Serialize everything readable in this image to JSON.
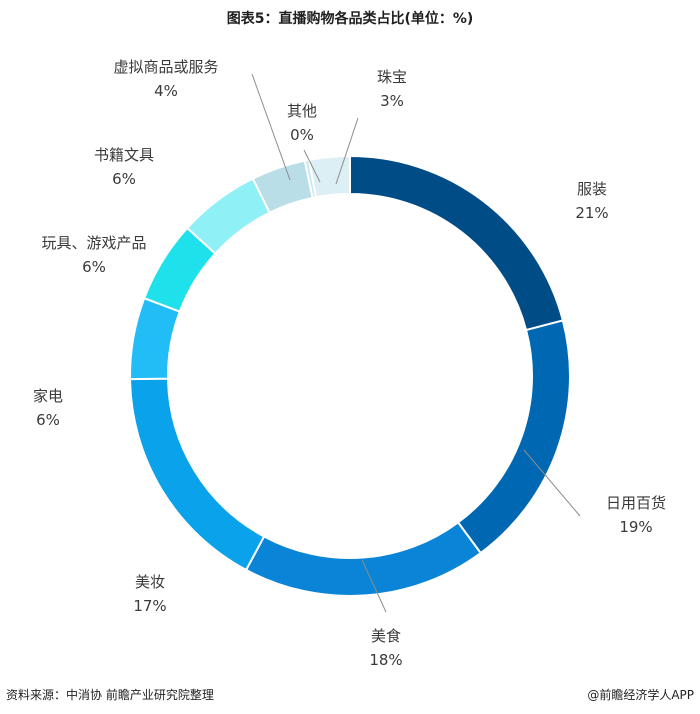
{
  "title": "图表5：直播购物各品类占比(单位：%)",
  "footer": {
    "source": "资料来源：中消协 前瞻产业研究院整理",
    "brand": "@前瞻经济学人APP"
  },
  "chart_data": {
    "type": "donut",
    "series": [
      {
        "name": "服装",
        "value": 21,
        "value_label": "21%",
        "color": "#004C87"
      },
      {
        "name": "日用百货",
        "value": 19,
        "value_label": "19%",
        "color": "#0068B3"
      },
      {
        "name": "美食",
        "value": 18,
        "value_label": "18%",
        "color": "#0A84D6"
      },
      {
        "name": "美妆",
        "value": 17,
        "value_label": "17%",
        "color": "#0AA2EA"
      },
      {
        "name": "家电",
        "value": 6,
        "value_label": "6%",
        "color": "#22BDF6"
      },
      {
        "name": "玩具、游戏产品",
        "value": 6,
        "value_label": "6%",
        "color": "#1FE1EC"
      },
      {
        "name": "书籍文具",
        "value": 6,
        "value_label": "6%",
        "color": "#8FF1F5"
      },
      {
        "name": "虚拟商品或服务",
        "value": 4,
        "value_label": "4%",
        "color": "#B9DEE8"
      },
      {
        "name": "其他",
        "value": 0,
        "value_label": "0%",
        "color": "#C9E5EE"
      },
      {
        "name": "珠宝",
        "value": 3,
        "value_label": "3%",
        "color": "#DCEFF5"
      }
    ]
  }
}
